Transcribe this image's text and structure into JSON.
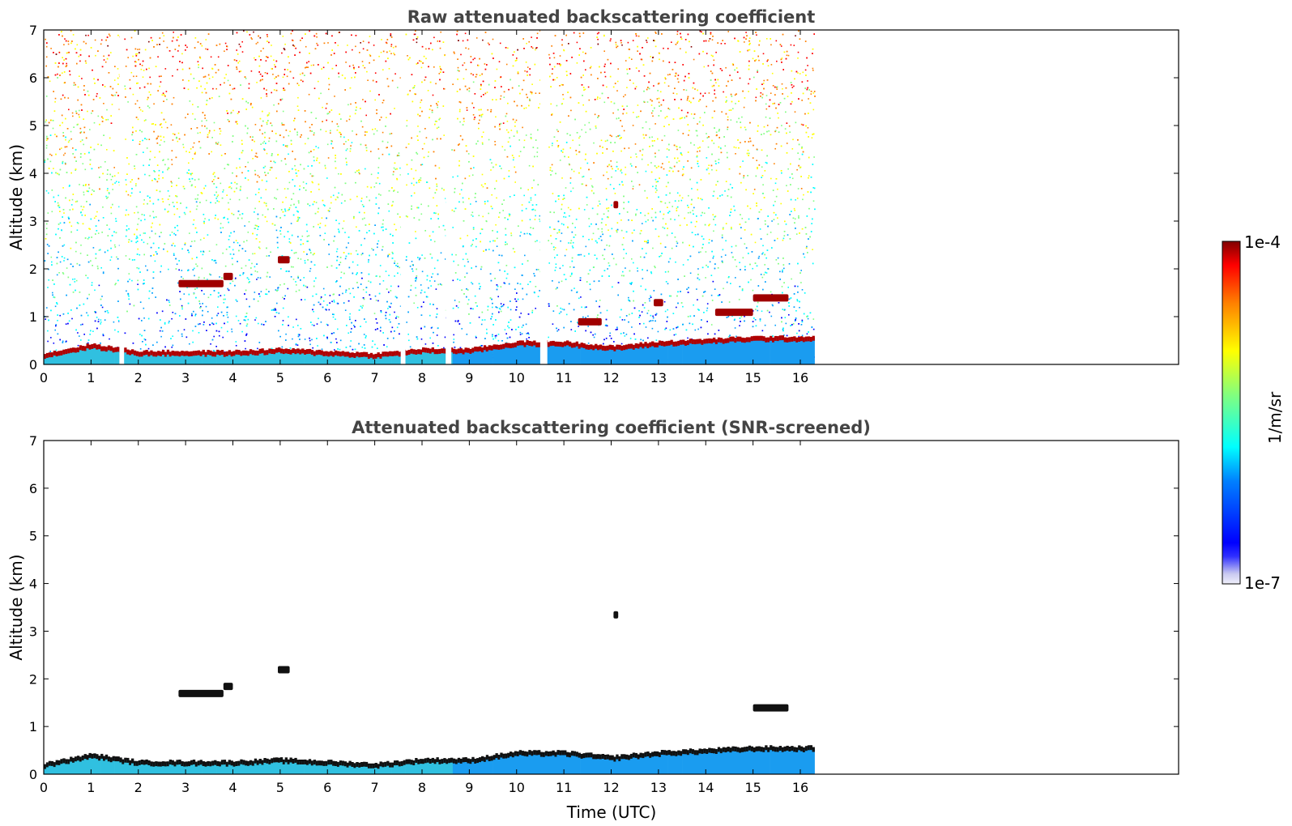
{
  "chart_data": [
    {
      "type": "heatmap",
      "title": "Raw attenuated backscattering coefficient",
      "xlabel": "",
      "ylabel": "Altitude (km)",
      "xlim": [
        0,
        24
      ],
      "ylim": [
        0,
        7
      ],
      "x_ticks": [
        "0",
        "1",
        "2",
        "3",
        "4",
        "5",
        "6",
        "7",
        "8",
        "9",
        "10",
        "11",
        "12",
        "13",
        "14",
        "15",
        "16"
      ],
      "y_ticks": [
        "0",
        "1",
        "2",
        "3",
        "4",
        "5",
        "6",
        "7"
      ],
      "data_extent_time_utc": [
        0,
        16.3
      ],
      "data_gaps_time_utc": [
        [
          1.6,
          1.7
        ],
        [
          7.55,
          7.65
        ],
        [
          8.5,
          8.62
        ],
        [
          10.5,
          10.65
        ]
      ],
      "features": [
        {
          "kind": "boundary_layer_top",
          "time_utc": [
            0,
            1,
            2,
            3,
            4,
            5,
            6,
            7,
            8,
            9,
            10,
            11,
            12,
            13,
            14,
            15,
            16.3
          ],
          "altitude_km": [
            0.2,
            0.4,
            0.25,
            0.25,
            0.25,
            0.3,
            0.25,
            0.2,
            0.3,
            0.3,
            0.45,
            0.45,
            0.35,
            0.45,
            0.5,
            0.55,
            0.55
          ]
        },
        {
          "kind": "cloud",
          "time_utc": [
            2.85,
            3.8
          ],
          "altitude_km": 1.7
        },
        {
          "kind": "cloud",
          "time_utc": [
            3.8,
            4.0
          ],
          "altitude_km": 1.85
        },
        {
          "kind": "cloud",
          "time_utc": [
            4.95,
            5.2
          ],
          "altitude_km": 2.2
        },
        {
          "kind": "cloud",
          "time_utc": [
            12.05,
            12.15
          ],
          "altitude_km": 3.35
        },
        {
          "kind": "cloud",
          "time_utc": [
            15.0,
            15.75
          ],
          "altitude_km": 1.4
        },
        {
          "kind": "cloud",
          "time_utc": [
            14.2,
            15.0
          ],
          "altitude_km": 1.1
        },
        {
          "kind": "cloud",
          "time_utc": [
            12.9,
            13.1
          ],
          "altitude_km": 1.3
        },
        {
          "kind": "cloud",
          "time_utc": [
            11.3,
            11.8
          ],
          "altitude_km": 0.9
        }
      ]
    },
    {
      "type": "heatmap",
      "title": "Attenuated backscattering coefficient (SNR-screened)",
      "xlabel": "Time (UTC)",
      "ylabel": "Altitude (km)",
      "xlim": [
        0,
        24
      ],
      "ylim": [
        0,
        7
      ],
      "x_ticks": [
        "0",
        "1",
        "2",
        "3",
        "4",
        "5",
        "6",
        "7",
        "8",
        "9",
        "10",
        "11",
        "12",
        "13",
        "14",
        "15",
        "16"
      ],
      "y_ticks": [
        "0",
        "1",
        "2",
        "3",
        "4",
        "5",
        "6",
        "7"
      ],
      "data_extent_time_utc": [
        0,
        16.3
      ],
      "features": [
        {
          "kind": "boundary_layer_top",
          "time_utc": [
            0,
            1,
            2,
            3,
            4,
            5,
            6,
            7,
            8,
            9,
            10,
            11,
            12,
            13,
            14,
            15,
            16.3
          ],
          "altitude_km": [
            0.2,
            0.4,
            0.25,
            0.25,
            0.25,
            0.3,
            0.25,
            0.2,
            0.3,
            0.3,
            0.45,
            0.45,
            0.35,
            0.45,
            0.5,
            0.55,
            0.55
          ]
        },
        {
          "kind": "cloud",
          "time_utc": [
            2.85,
            3.8
          ],
          "altitude_km": 1.7
        },
        {
          "kind": "cloud",
          "time_utc": [
            3.8,
            4.0
          ],
          "altitude_km": 1.85
        },
        {
          "kind": "cloud",
          "time_utc": [
            4.95,
            5.2
          ],
          "altitude_km": 2.2
        },
        {
          "kind": "cloud",
          "time_utc": [
            12.05,
            12.15
          ],
          "altitude_km": 3.35
        },
        {
          "kind": "cloud",
          "time_utc": [
            15.0,
            15.75
          ],
          "altitude_km": 1.4
        }
      ]
    }
  ],
  "colorbar": {
    "label": "1/m/sr",
    "min_label": "1e-7",
    "max_label": "1e-4",
    "colormap": "jet",
    "colors": [
      "#e8e8f8",
      "#0000ff",
      "#00a0ff",
      "#00ffff",
      "#80ff80",
      "#ffff00",
      "#ff8000",
      "#ff0000",
      "#800000"
    ]
  }
}
